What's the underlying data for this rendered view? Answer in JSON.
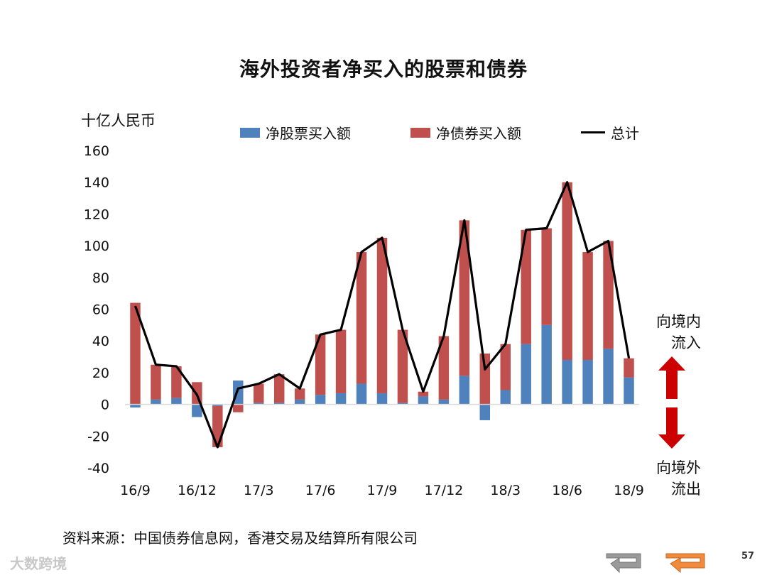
{
  "page": {
    "unit_label": "十亿人民币",
    "side_labels": {
      "inflow": [
        "向境内",
        "流入"
      ],
      "outflow": [
        "向境外",
        "流出"
      ]
    },
    "source": "资料来源：中国债券信息网，香港交易及结算所有限公司",
    "watermark": "大数跨境",
    "page_number": "57",
    "colors": {
      "equity": "#4f81bd",
      "bond": "#c0504d",
      "total": "#000000",
      "arrow": "#cc0000",
      "nav_prev": "#9a9a9a",
      "nav_next": "#f08a3c"
    },
    "icons": {
      "prev": "back-arrow-icon",
      "next": "back-arrow-icon"
    }
  },
  "chart_data": {
    "type": "bar",
    "title": "海外投资者净买入的股票和债券",
    "ylabel": "十亿人民币",
    "ylim": [
      -40,
      160
    ],
    "yticks": [
      -40,
      -20,
      0,
      20,
      40,
      60,
      80,
      100,
      120,
      140,
      160
    ],
    "x_tick_labels": [
      "16/9",
      "16/12",
      "17/3",
      "17/6",
      "17/9",
      "17/12",
      "18/3",
      "18/6",
      "18/9"
    ],
    "categories": [
      "16/9",
      "16/10",
      "16/11",
      "16/12",
      "17/1",
      "17/2",
      "17/3",
      "17/4",
      "17/5",
      "17/6",
      "17/7",
      "17/8",
      "17/9",
      "17/10",
      "17/11",
      "17/12",
      "18/1",
      "18/2",
      "18/3",
      "18/4",
      "18/5",
      "18/6",
      "18/7",
      "18/8",
      "18/9"
    ],
    "series": [
      {
        "name": "净股票买入额",
        "type": "bar",
        "values": [
          -2,
          3,
          4,
          -8,
          -1,
          15,
          1,
          1,
          3,
          6,
          7,
          13,
          7,
          1,
          5,
          3,
          18,
          -10,
          9,
          38,
          50,
          28,
          28,
          35,
          17
        ]
      },
      {
        "name": "净债券买入额",
        "type": "bar",
        "values": [
          64,
          22,
          20,
          14,
          -26,
          -5,
          12,
          18,
          7,
          38,
          40,
          83,
          98,
          46,
          3,
          40,
          98,
          32,
          29,
          72,
          61,
          112,
          68,
          68,
          12
        ]
      },
      {
        "name": "总计",
        "type": "line",
        "values": [
          62,
          25,
          24,
          6,
          -27,
          10,
          13,
          19,
          10,
          44,
          47,
          96,
          105,
          47,
          8,
          43,
          116,
          22,
          38,
          110,
          111,
          140,
          96,
          103,
          29
        ]
      }
    ],
    "legend_position": "top",
    "grid": false
  }
}
